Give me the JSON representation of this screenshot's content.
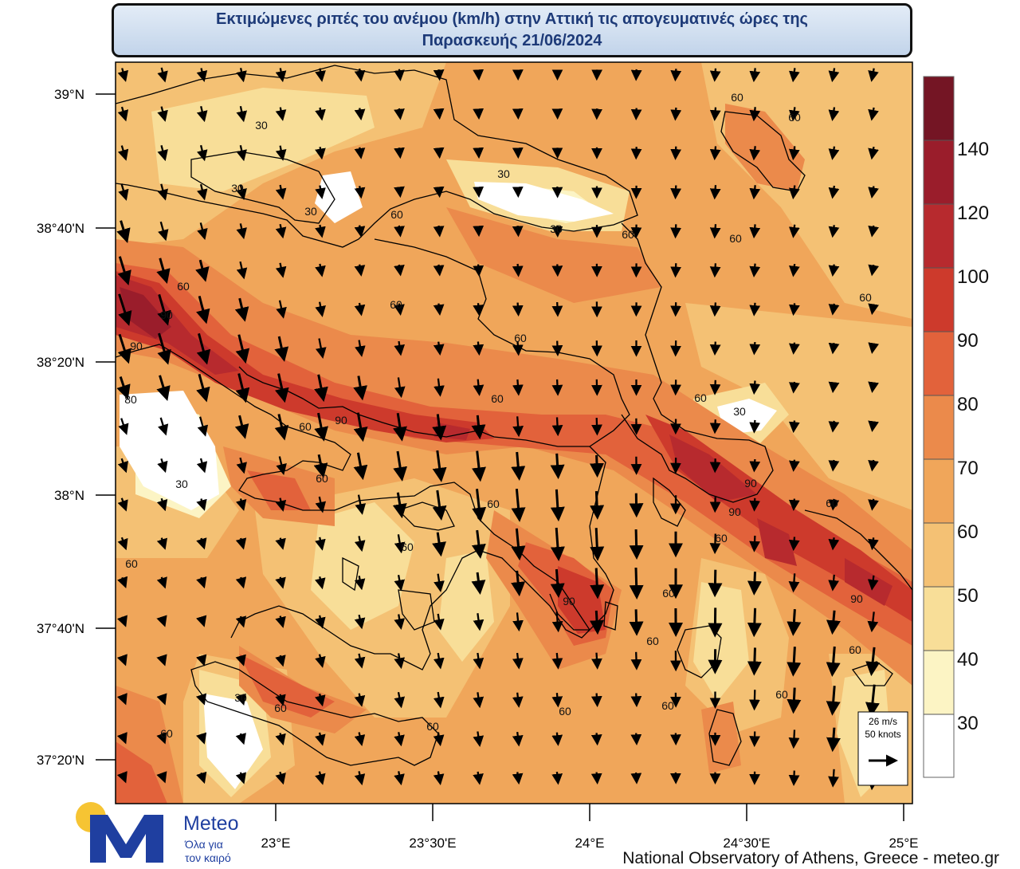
{
  "title": {
    "line1": "Εκτιμώμενες ριπές του ανέμου (km/h) στην Αττική τις απογευματινές ώρες της",
    "line2": "Παρασκευής 21/06/2024"
  },
  "axes": {
    "lat_labels": [
      "39°N",
      "38°40'N",
      "38°20'N",
      "38°N",
      "37°40'N",
      "37°20'N"
    ],
    "lon_labels": [
      "23°E",
      "23°30'E",
      "24°E",
      "24°30'E",
      "25°E"
    ]
  },
  "colorbar": {
    "labels": [
      "140",
      "120",
      "100",
      "90",
      "80",
      "70",
      "60",
      "50",
      "40",
      "30"
    ],
    "colors": [
      "#741524",
      "#9a1d2b",
      "#b72a2e",
      "#cd3a2c",
      "#e2623b",
      "#eb8a4b",
      "#f0a65a",
      "#f4c174",
      "#f8de98",
      "#fcf4c4",
      "#ffffff"
    ]
  },
  "contour_labels": [
    {
      "text": "30"
    },
    {
      "text": "30"
    },
    {
      "text": "30"
    },
    {
      "text": "30"
    },
    {
      "text": "30"
    },
    {
      "text": "30"
    },
    {
      "text": "30"
    },
    {
      "text": "30"
    },
    {
      "text": "60"
    },
    {
      "text": "60"
    },
    {
      "text": "60"
    },
    {
      "text": "60"
    },
    {
      "text": "60"
    },
    {
      "text": "60"
    },
    {
      "text": "60"
    },
    {
      "text": "60"
    },
    {
      "text": "60"
    },
    {
      "text": "60"
    },
    {
      "text": "60"
    },
    {
      "text": "60"
    },
    {
      "text": "60"
    },
    {
      "text": "60"
    },
    {
      "text": "60"
    },
    {
      "text": "60"
    },
    {
      "text": "60"
    },
    {
      "text": "60"
    },
    {
      "text": "60"
    },
    {
      "text": "60"
    },
    {
      "text": "60"
    },
    {
      "text": "60"
    },
    {
      "text": "60"
    },
    {
      "text": "60"
    },
    {
      "text": "60"
    },
    {
      "text": "60"
    },
    {
      "text": "60"
    },
    {
      "text": "90"
    },
    {
      "text": "90"
    },
    {
      "text": "90"
    },
    {
      "text": "90"
    },
    {
      "text": "90"
    },
    {
      "text": "90"
    },
    {
      "text": "90"
    },
    {
      "text": "80"
    }
  ],
  "reference_vector": {
    "line1": "26 m/s",
    "line2": "50 knots"
  },
  "logo": {
    "brand": "Meteo",
    "tagline1": "Όλα για",
    "tagline2": "τον καιρό"
  },
  "credit": "National Observatory of Athens, Greece - meteo.gr"
}
